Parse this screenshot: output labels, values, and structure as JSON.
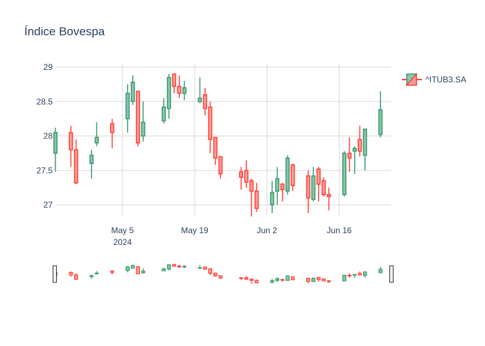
{
  "chart_data": {
    "type": "candlestick",
    "title": "Índice Bovespa",
    "xlabel": "",
    "ylabel": "",
    "ylim": [
      26.85,
      29.05
    ],
    "yticks": [
      27,
      27.5,
      28,
      28.5,
      29
    ],
    "ytick_labels": [
      "27",
      "27.5",
      "28",
      "28.5",
      "29"
    ],
    "xlim": [
      "2024-04-22",
      "2024-06-26"
    ],
    "xticks": [
      {
        "date": "2024-05-05",
        "label": "May 5",
        "sublabel": "2024"
      },
      {
        "date": "2024-05-19",
        "label": "May 19",
        "sublabel": ""
      },
      {
        "date": "2024-06-02",
        "label": "Jun 2",
        "sublabel": ""
      },
      {
        "date": "2024-06-16",
        "label": "Jun 16",
        "sublabel": ""
      }
    ],
    "grid": true,
    "legend": {
      "position": "top-right",
      "entries": [
        "^ITUB3.SA"
      ]
    },
    "colors": {
      "increasing": "#3d9970",
      "decreasing": "#ff4136",
      "increasing_fill": "#88c8ac",
      "decreasing_fill": "#ff9f9a"
    },
    "rangeslider": true,
    "series": [
      {
        "name": "^ITUB3.SA",
        "data": [
          {
            "date": "2024-04-22",
            "open": 27.75,
            "high": 28.12,
            "low": 27.48,
            "close": 28.05
          },
          {
            "date": "2024-04-25",
            "open": 28.05,
            "high": 28.15,
            "low": 27.55,
            "close": 27.8
          },
          {
            "date": "2024-04-26",
            "open": 27.8,
            "high": 27.95,
            "low": 27.3,
            "close": 27.32
          },
          {
            "date": "2024-04-29",
            "open": 27.6,
            "high": 27.8,
            "low": 27.38,
            "close": 27.72
          },
          {
            "date": "2024-04-30",
            "open": 27.9,
            "high": 28.2,
            "low": 27.85,
            "close": 27.98
          },
          {
            "date": "2024-05-03",
            "open": 28.18,
            "high": 28.25,
            "low": 27.82,
            "close": 28.05
          },
          {
            "date": "2024-05-06",
            "open": 28.25,
            "high": 28.75,
            "low": 28.05,
            "close": 28.62
          },
          {
            "date": "2024-05-07",
            "open": 28.5,
            "high": 28.88,
            "low": 28.45,
            "close": 28.78
          },
          {
            "date": "2024-05-08",
            "open": 28.65,
            "high": 28.65,
            "low": 27.85,
            "close": 27.9
          },
          {
            "date": "2024-05-09",
            "open": 28.0,
            "high": 28.5,
            "low": 27.92,
            "close": 28.2
          },
          {
            "date": "2024-05-13",
            "open": 28.22,
            "high": 28.55,
            "low": 28.18,
            "close": 28.42
          },
          {
            "date": "2024-05-14",
            "open": 28.4,
            "high": 28.9,
            "low": 28.25,
            "close": 28.85
          },
          {
            "date": "2024-05-15",
            "open": 28.9,
            "high": 28.9,
            "low": 28.62,
            "close": 28.72
          },
          {
            "date": "2024-05-16",
            "open": 28.72,
            "high": 28.88,
            "low": 28.55,
            "close": 28.62
          },
          {
            "date": "2024-05-17",
            "open": 28.62,
            "high": 28.8,
            "low": 28.52,
            "close": 28.7
          },
          {
            "date": "2024-05-20",
            "open": 28.5,
            "high": 28.85,
            "low": 28.48,
            "close": 28.55
          },
          {
            "date": "2024-05-21",
            "open": 28.6,
            "high": 28.7,
            "low": 28.3,
            "close": 28.4
          },
          {
            "date": "2024-05-22",
            "open": 28.42,
            "high": 28.5,
            "low": 27.75,
            "close": 27.95
          },
          {
            "date": "2024-05-23",
            "open": 27.98,
            "high": 27.98,
            "low": 27.58,
            "close": 27.68
          },
          {
            "date": "2024-05-24",
            "open": 27.7,
            "high": 27.7,
            "low": 27.38,
            "close": 27.45
          },
          {
            "date": "2024-05-28",
            "open": 27.48,
            "high": 27.55,
            "low": 27.22,
            "close": 27.4
          },
          {
            "date": "2024-05-29",
            "open": 27.5,
            "high": 27.65,
            "low": 27.25,
            "close": 27.33
          },
          {
            "date": "2024-05-30",
            "open": 27.35,
            "high": 27.38,
            "low": 26.83,
            "close": 27.2
          },
          {
            "date": "2024-05-31",
            "open": 27.2,
            "high": 27.32,
            "low": 26.9,
            "close": 26.95
          },
          {
            "date": "2024-06-03",
            "open": 27.0,
            "high": 27.35,
            "low": 26.88,
            "close": 27.18
          },
          {
            "date": "2024-06-04",
            "open": 27.2,
            "high": 27.55,
            "low": 27.0,
            "close": 27.38
          },
          {
            "date": "2024-06-05",
            "open": 27.3,
            "high": 27.32,
            "low": 27.05,
            "close": 27.22
          },
          {
            "date": "2024-06-06",
            "open": 27.2,
            "high": 27.72,
            "low": 27.15,
            "close": 27.68
          },
          {
            "date": "2024-06-07",
            "open": 27.58,
            "high": 27.6,
            "low": 27.2,
            "close": 27.28
          },
          {
            "date": "2024-06-10",
            "open": 27.42,
            "high": 27.5,
            "low": 26.88,
            "close": 27.1
          },
          {
            "date": "2024-06-11",
            "open": 27.08,
            "high": 27.55,
            "low": 27.05,
            "close": 27.42
          },
          {
            "date": "2024-06-12",
            "open": 27.52,
            "high": 27.55,
            "low": 27.05,
            "close": 27.3
          },
          {
            "date": "2024-06-13",
            "open": 27.35,
            "high": 27.4,
            "low": 27.12,
            "close": 27.15
          },
          {
            "date": "2024-06-14",
            "open": 27.15,
            "high": 27.25,
            "low": 26.92,
            "close": 27.12
          },
          {
            "date": "2024-06-17",
            "open": 27.15,
            "high": 27.78,
            "low": 27.12,
            "close": 27.75
          },
          {
            "date": "2024-06-18",
            "open": 27.75,
            "high": 27.98,
            "low": 27.48,
            "close": 27.68
          },
          {
            "date": "2024-06-19",
            "open": 27.78,
            "high": 27.85,
            "low": 27.45,
            "close": 27.82
          },
          {
            "date": "2024-06-20",
            "open": 27.95,
            "high": 28.15,
            "low": 27.7,
            "close": 27.78
          },
          {
            "date": "2024-06-21",
            "open": 27.72,
            "high": 28.1,
            "low": 27.5,
            "close": 28.1
          },
          {
            "date": "2024-06-24",
            "open": 28.02,
            "high": 28.65,
            "low": 27.98,
            "close": 28.38
          }
        ]
      }
    ]
  }
}
